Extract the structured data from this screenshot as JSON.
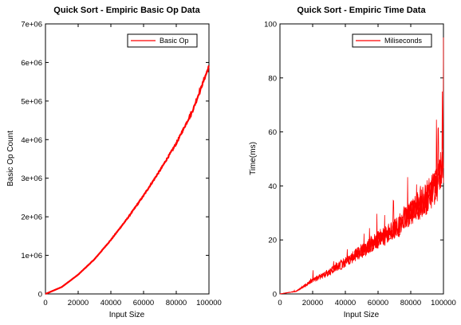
{
  "chart_data": [
    {
      "type": "line",
      "title": "Quick Sort - Empiric Basic Op Data",
      "xlabel": "Input Size",
      "ylabel": "Basic Op Count",
      "xlim": [
        0,
        100000
      ],
      "ylim": [
        0,
        7000000
      ],
      "xticks": [
        0,
        20000,
        40000,
        60000,
        80000,
        100000
      ],
      "xtick_labels": [
        "0",
        "20000",
        "40000",
        "60000",
        "80000",
        "100000"
      ],
      "yticks": [
        0,
        1000000,
        2000000,
        3000000,
        4000000,
        5000000,
        6000000,
        7000000
      ],
      "ytick_labels": [
        "0",
        "1e+06",
        "2e+06",
        "3e+06",
        "4e+06",
        "5e+06",
        "6e+06",
        "7e+06"
      ],
      "grid": false,
      "legend_position": "top-right",
      "series": [
        {
          "name": "Basic Op",
          "color": "#ff0000",
          "x": [
            0,
            10000,
            20000,
            30000,
            40000,
            50000,
            60000,
            70000,
            80000,
            90000,
            100000
          ],
          "y": [
            0,
            180000,
            500000,
            900000,
            1400000,
            1950000,
            2550000,
            3200000,
            3900000,
            4750000,
            5900000
          ]
        }
      ]
    },
    {
      "type": "line",
      "title": "Quick Sort - Empiric Time Data",
      "xlabel": "Input Size",
      "ylabel": "Time(ms)",
      "xlim": [
        0,
        100000
      ],
      "ylim": [
        0,
        100
      ],
      "xticks": [
        0,
        20000,
        40000,
        60000,
        80000,
        100000
      ],
      "xtick_labels": [
        "0",
        "20000",
        "40000",
        "60000",
        "80000",
        "100000"
      ],
      "yticks": [
        0,
        20,
        40,
        60,
        80,
        100
      ],
      "ytick_labels": [
        "0",
        "20",
        "40",
        "60",
        "80",
        "100"
      ],
      "grid": false,
      "legend_position": "top-right",
      "series": [
        {
          "name": "Miliseconds",
          "color": "#ff0000",
          "x": [
            0,
            10000,
            20000,
            30000,
            40000,
            50000,
            60000,
            70000,
            80000,
            90000,
            95000,
            98000,
            100000
          ],
          "y": [
            0,
            1,
            5,
            8,
            12,
            16,
            20,
            24,
            30,
            36,
            40,
            44,
            95
          ]
        }
      ]
    }
  ]
}
